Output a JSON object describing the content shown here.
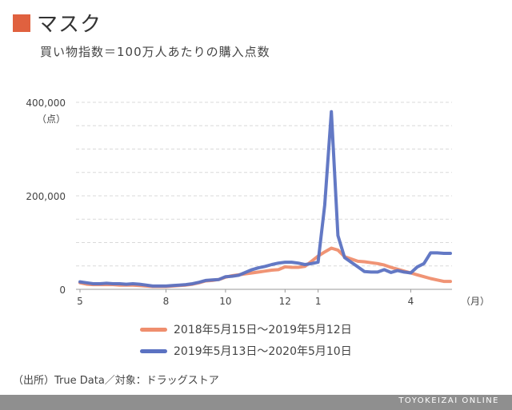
{
  "header": {
    "title": "マスク",
    "subtitle": "買い物指数＝100万人あたりの購入点数",
    "accent": "#e0613f"
  },
  "chart_data": {
    "type": "line",
    "y_unit": "（点）",
    "x_unit": "（月）",
    "ylim": [
      0,
      400000
    ],
    "y_ticks": [
      {
        "value": 0,
        "label": "0"
      },
      {
        "value": 200000,
        "label": "200,000"
      },
      {
        "value": 400000,
        "label": "400,000"
      }
    ],
    "x_ticks": [
      {
        "index": 0,
        "label": "5"
      },
      {
        "index": 13,
        "label": "8"
      },
      {
        "index": 22,
        "label": "10"
      },
      {
        "index": 31,
        "label": "12"
      },
      {
        "index": 36,
        "label": "1"
      },
      {
        "index": 50,
        "label": "4"
      }
    ],
    "grid": true,
    "legend_position": "bottom",
    "series": [
      {
        "name": "2018年5月15日～2019年5月12日",
        "color": "#ef8e6e",
        "values": [
          14000,
          11000,
          10000,
          10000,
          10000,
          10000,
          9000,
          9000,
          9000,
          8000,
          7000,
          6000,
          6000,
          6000,
          7000,
          8000,
          9000,
          11000,
          14000,
          18000,
          19000,
          21000,
          26000,
          29000,
          31000,
          33000,
          35000,
          37000,
          39000,
          41000,
          42000,
          48000,
          47000,
          47000,
          49000,
          60000,
          71000,
          80000,
          88000,
          84000,
          70000,
          65000,
          60000,
          59000,
          57000,
          55000,
          52000,
          47000,
          43000,
          39000,
          35000,
          31000,
          27000,
          23000,
          20000,
          17000,
          17000
        ]
      },
      {
        "name": "2019年5月13日～2020年5月10日",
        "color": "#5b72c2",
        "values": [
          16000,
          14000,
          12000,
          12000,
          13000,
          12000,
          12000,
          11000,
          12000,
          11000,
          9000,
          7000,
          7000,
          7000,
          8000,
          9000,
          10000,
          12000,
          15000,
          19000,
          20000,
          21000,
          27000,
          28000,
          30000,
          36000,
          42000,
          46000,
          49000,
          53000,
          56000,
          58000,
          58000,
          56000,
          53000,
          55000,
          58000,
          180000,
          380000,
          115000,
          68000,
          58000,
          48000,
          38000,
          37000,
          37000,
          42000,
          36000,
          40000,
          37000,
          35000,
          48000,
          55000,
          78000,
          78000,
          77000,
          77000
        ]
      }
    ]
  },
  "source": "（出所）True Data／対象：ドラッグストア",
  "footer": {
    "brand": "TOYOKEIZAI ONLINE"
  }
}
